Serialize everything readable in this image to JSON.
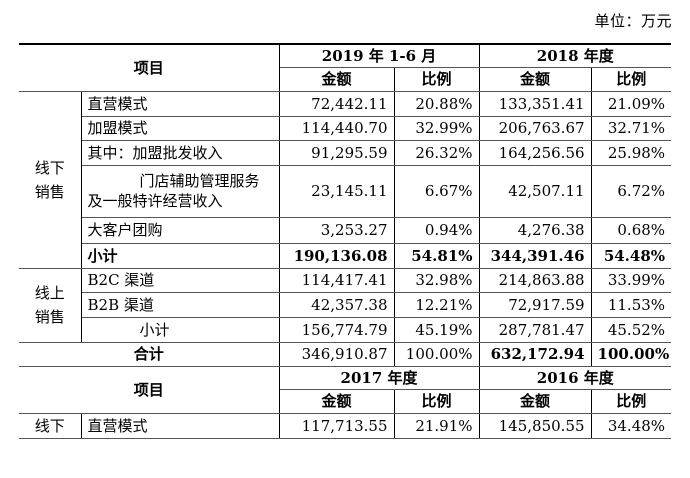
{
  "unit_label": "单位：万元",
  "header1": {
    "item": "项目",
    "period_a": "2019 年 1-6 月",
    "period_b": "2018 年度",
    "amount": "金额",
    "ratio": "比例"
  },
  "offline": {
    "group": "线下销售",
    "rows": [
      {
        "name": "直营模式",
        "amt_a": "72,442.11",
        "pct_a": "20.88%",
        "amt_b": "133,351.41",
        "pct_b": "21.09%"
      },
      {
        "name": "加盟模式",
        "amt_a": "114,440.70",
        "pct_a": "32.99%",
        "amt_b": "206,763.67",
        "pct_b": "32.71%"
      },
      {
        "name": "其中：加盟批发收入",
        "amt_a": "91,295.59",
        "pct_a": "26.32%",
        "amt_b": "164,256.56",
        "pct_b": "25.98%"
      },
      {
        "name": "门店辅助管理服务及一般特许经营收入",
        "amt_a": "23,145.11",
        "pct_a": "6.67%",
        "amt_b": "42,507.11",
        "pct_b": "6.72%"
      },
      {
        "name": "大客户团购",
        "amt_a": "3,253.27",
        "pct_a": "0.94%",
        "amt_b": "4,276.38",
        "pct_b": "0.68%"
      }
    ],
    "subtotal": {
      "name": "小计",
      "amt_a": "190,136.08",
      "pct_a": "54.81%",
      "amt_b": "344,391.46",
      "pct_b": "54.48%"
    }
  },
  "online": {
    "group": "线上销售",
    "rows": [
      {
        "name": "B2C 渠道",
        "amt_a": "114,417.41",
        "pct_a": "32.98%",
        "amt_b": "214,863.88",
        "pct_b": "33.99%"
      },
      {
        "name": "B2B 渠道",
        "amt_a": "42,357.38",
        "pct_a": "12.21%",
        "amt_b": "72,917.59",
        "pct_b": "11.53%"
      }
    ],
    "subtotal": {
      "name": "小计",
      "amt_a": "156,774.79",
      "pct_a": "45.19%",
      "amt_b": "287,781.47",
      "pct_b": "45.52%"
    }
  },
  "total": {
    "name": "合计",
    "amt_a": "346,910.87",
    "pct_a": "100.00%",
    "amt_b": "632,172.94",
    "pct_b": "100.00%"
  },
  "header2": {
    "item": "项目",
    "period_a": "2017 年度",
    "period_b": "2016 年度",
    "amount": "金额",
    "ratio": "比例"
  },
  "bottom_row": {
    "group": "线下",
    "name": "直营模式",
    "amt_a": "117,713.55",
    "pct_a": "21.91%",
    "amt_b": "145,850.55",
    "pct_b": "34.48%"
  }
}
